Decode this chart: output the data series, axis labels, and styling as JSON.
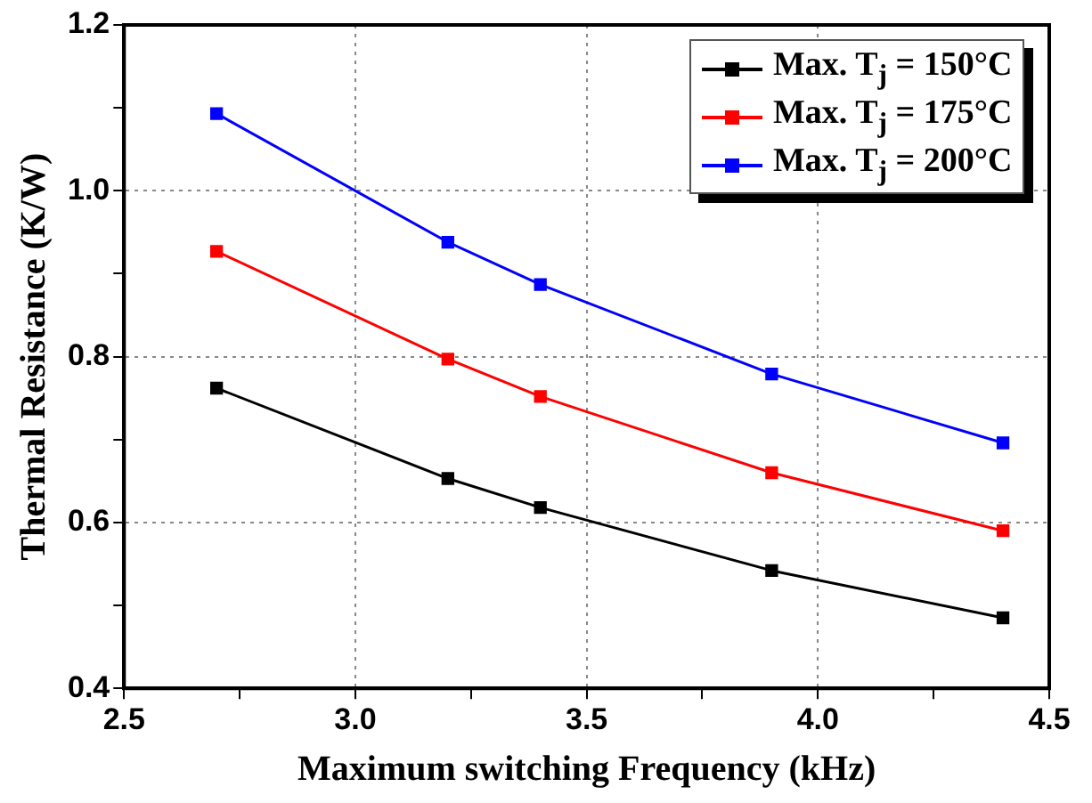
{
  "chart_data": {
    "type": "line",
    "xlabel": "Maximum switching Frequency (kHz)",
    "ylabel": "Thermal Resistance (K/W)",
    "x": [
      2.7,
      3.2,
      3.4,
      3.9,
      4.4
    ],
    "series": [
      {
        "name": "Max. T$_{j}$ = 150°C",
        "color": "#000000",
        "values": [
          0.762,
          0.653,
          0.618,
          0.542,
          0.485
        ]
      },
      {
        "name": "Max. T$_{j}$ = 175°C",
        "color": "#ff0000",
        "values": [
          0.927,
          0.797,
          0.752,
          0.66,
          0.59
        ]
      },
      {
        "name": "Max. T$_{j}$ = 200°C",
        "color": "#0000ff",
        "values": [
          1.093,
          0.938,
          0.887,
          0.779,
          0.696
        ]
      }
    ],
    "xlim": [
      2.5,
      4.5
    ],
    "xticks": [
      2.5,
      {
        "value": 2.75,
        "label": null
      },
      {
        "value": 3,
        "label": "3.0"
      },
      {
        "value": 3.25,
        "label": null
      },
      3.5,
      {
        "value": 3.75,
        "label": null
      },
      {
        "value": 4,
        "label": "4.0"
      },
      {
        "value": 4.25,
        "label": null
      },
      4.5
    ],
    "ylim": [
      0.4,
      1.2
    ],
    "yticks": [
      0.4,
      {
        "value": 0.5,
        "label": null
      },
      0.6,
      {
        "value": 0.7,
        "label": null
      },
      0.8,
      {
        "value": 0.9,
        "label": null
      },
      {
        "value": 1,
        "label": "1.0"
      },
      {
        "value": 1.1,
        "label": null
      },
      1.2
    ],
    "grid": true,
    "legend": "top right",
    "marker": "square",
    "line_style": "solid"
  }
}
